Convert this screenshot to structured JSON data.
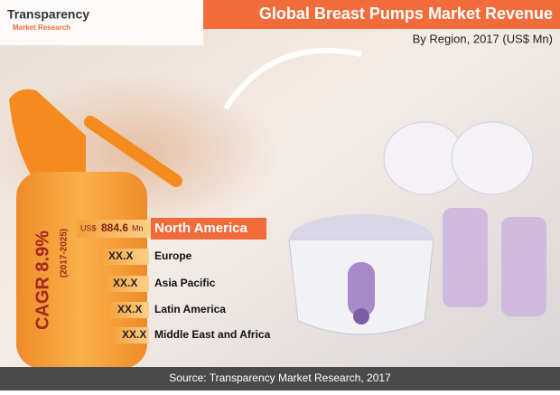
{
  "logo": {
    "line1": "Transparency",
    "line2": "Market Research"
  },
  "header": {
    "title": "Global Breast Pumps Market Revenue",
    "subtitle": "By Region, 2017 (US$ Mn)"
  },
  "cagr": {
    "label": "CAGR 8.9%",
    "period": "(2017-2025)"
  },
  "regions": [
    {
      "name": "North America",
      "currency": "US$",
      "value": "884.6",
      "unit": "Mn"
    },
    {
      "name": "Europe",
      "value": "XX.X"
    },
    {
      "name": "Asia Pacific",
      "value": "XX.X"
    },
    {
      "name": "Latin America",
      "value": "XX.X"
    },
    {
      "name": "Middle East and Africa",
      "value": "XX.X"
    }
  ],
  "footer": {
    "source": "Source: Transparency Market Research, 2017"
  }
}
